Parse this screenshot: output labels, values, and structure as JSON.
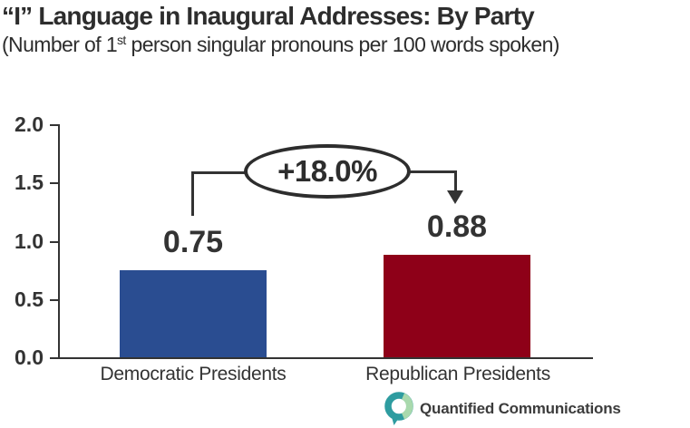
{
  "title": {
    "text": "“I” Language in Inaugural Addresses: By Party"
  },
  "subtitle": {
    "prefix": "(Number of 1",
    "superscript": "st",
    "suffix": " person singular pronouns per 100 words spoken)"
  },
  "chart_data": {
    "type": "bar",
    "title": "“I” Language in Inaugural Addresses: By Party",
    "subtitle": "(Number of 1st person singular pronouns per 100 words spoken)",
    "categories": [
      "Democratic Presidents",
      "Republican Presidents"
    ],
    "values": [
      0.75,
      0.88
    ],
    "value_labels": [
      "0.75",
      "0.88"
    ],
    "bar_colors": [
      "#2A4D91",
      "#8E0018"
    ],
    "xlabel": "",
    "ylabel": "",
    "ylim": [
      0,
      2.0
    ],
    "yticks": [
      "2.0",
      "1.5",
      "1.0",
      "0.5",
      "0.0"
    ],
    "grid": false,
    "legend": null,
    "annotation": {
      "label": "+18.0%",
      "meaning": "percent increase from Democratic to Republican bar"
    }
  },
  "colors": {
    "axis": "#333333",
    "text": "#2d2d2d",
    "democratic_blue": "#2A4D91",
    "republican_red": "#8E0018",
    "logo_teal": "#2E9CA0",
    "logo_green": "#A9D9AD",
    "logo_text": "#3c3c3c"
  },
  "branding": {
    "name": "Quantified Communications"
  }
}
